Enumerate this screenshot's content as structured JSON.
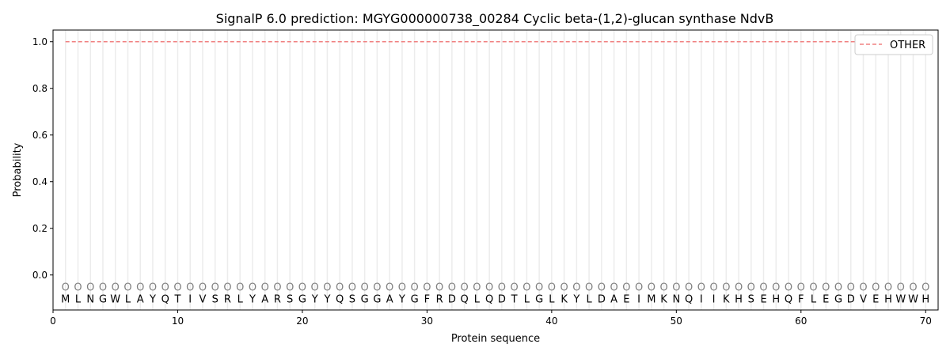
{
  "chart_data": {
    "type": "line",
    "title": "SignalP 6.0 prediction: MGYG000000738_00284 Cyclic beta-(1,2)-glucan synthase NdvB",
    "xlabel": "Protein sequence",
    "ylabel": "Probability",
    "xlim": [
      0,
      71
    ],
    "ylim": [
      -0.15,
      1.05
    ],
    "xticks": [
      0,
      10,
      20,
      30,
      40,
      50,
      60,
      70
    ],
    "yticks": [
      0.0,
      0.2,
      0.4,
      0.6,
      0.8,
      1.0
    ],
    "ytick_labels": [
      "0.0",
      "0.2",
      "0.4",
      "0.6",
      "0.8",
      "1.0"
    ],
    "sequence": [
      "M",
      "L",
      "N",
      "G",
      "W",
      "L",
      "A",
      "Y",
      "Q",
      "T",
      "I",
      "V",
      "S",
      "R",
      "L",
      "Y",
      "A",
      "R",
      "S",
      "G",
      "Y",
      "Y",
      "Q",
      "S",
      "G",
      "G",
      "A",
      "Y",
      "G",
      "F",
      "R",
      "D",
      "Q",
      "L",
      "Q",
      "D",
      "T",
      "L",
      "G",
      "L",
      "K",
      "Y",
      "L",
      "D",
      "A",
      "E",
      "I",
      "M",
      "K",
      "N",
      "Q",
      "I",
      "I",
      "K",
      "H",
      "S",
      "E",
      "H",
      "Q",
      "F",
      "L",
      "E",
      "G",
      "D",
      "V",
      "E",
      "H",
      "W",
      "W",
      "H"
    ],
    "predicted_label": "O",
    "series": [
      {
        "name": "OTHER",
        "color": "#f08080",
        "style": "dashed",
        "x_range": [
          1,
          70
        ],
        "value": 1.0
      }
    ],
    "legend_placement": "upper right",
    "grid": "vertical lines at each residue"
  }
}
